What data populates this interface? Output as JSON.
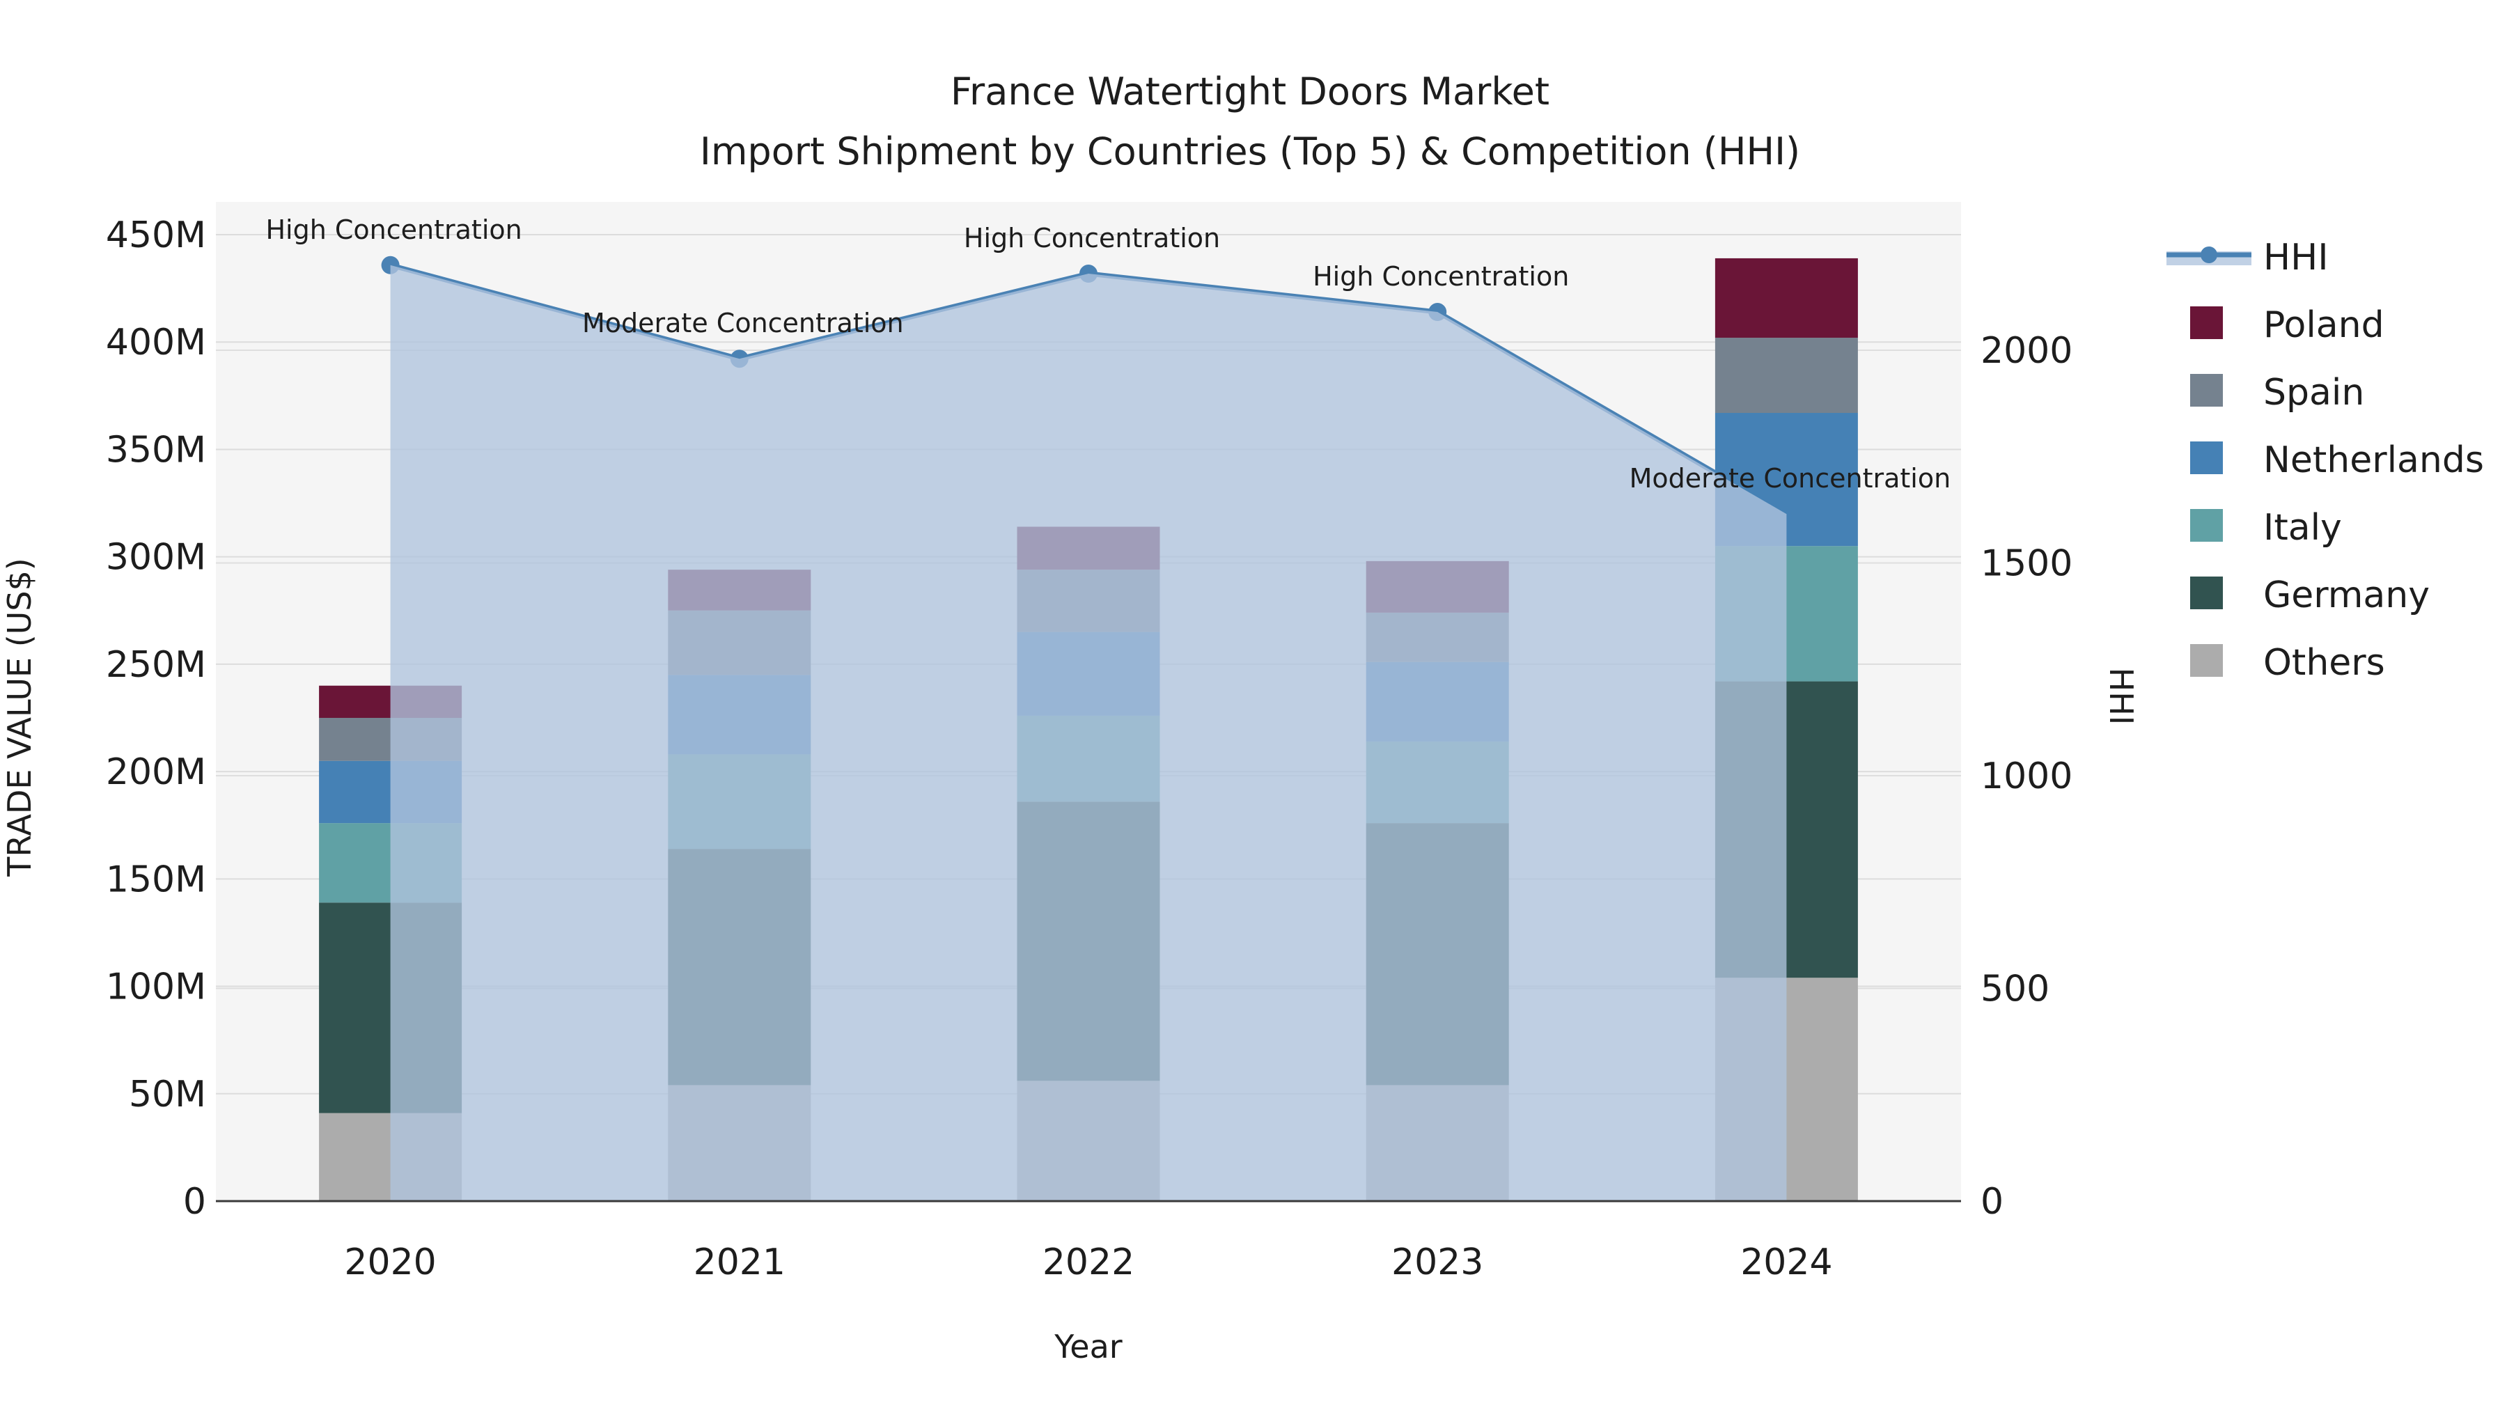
{
  "chart_data": {
    "type": "bar-line-combo",
    "title": "France Watertight Doors Market",
    "subtitle": "Import Shipment by Countries (Top 5) & Competition (HHI)",
    "xlabel": "Year",
    "ylabel_left": "TRADE VALUE (US$)",
    "ylabel_right": "HHI",
    "categories": [
      "2020",
      "2021",
      "2022",
      "2023",
      "2024"
    ],
    "value_unit": "million US$",
    "stack_order_bottom_to_top": [
      "Others",
      "Germany",
      "Italy",
      "Netherlands",
      "Spain",
      "Poland"
    ],
    "series": [
      {
        "name": "Poland",
        "color": "#6a1537",
        "values": [
          15,
          19,
          20,
          24,
          37
        ]
      },
      {
        "name": "Spain",
        "color": "#75828f",
        "values": [
          20,
          30,
          29,
          23,
          35
        ]
      },
      {
        "name": "Netherlands",
        "color": "#4581b5",
        "values": [
          29,
          37,
          39,
          37,
          62
        ]
      },
      {
        "name": "Italy",
        "color": "#60a1a5",
        "values": [
          37,
          44,
          40,
          38,
          63
        ]
      },
      {
        "name": "Germany",
        "color": "#315350",
        "values": [
          98,
          110,
          130,
          122,
          138
        ]
      },
      {
        "name": "Others",
        "color": "#acacac",
        "values": [
          41,
          54,
          56,
          54,
          104
        ]
      }
    ],
    "bar_totals": [
      240,
      294,
      314,
      298,
      439
    ],
    "line": {
      "name": "HHI",
      "color": "#4a82b4",
      "fill_color": "rgba(176,196,222,0.78)",
      "values": [
        2200,
        1980,
        2180,
        2090,
        1615
      ]
    },
    "annotations": [
      {
        "year": "2020",
        "text": "High Concentration"
      },
      {
        "year": "2021",
        "text": "Moderate Concentration"
      },
      {
        "year": "2022",
        "text": "High Concentration"
      },
      {
        "year": "2023",
        "text": "High Concentration"
      },
      {
        "year": "2024",
        "text": "Moderate Concentration"
      }
    ],
    "y_left": {
      "tick_labels": [
        "0",
        "50M",
        "100M",
        "150M",
        "200M",
        "250M",
        "300M",
        "350M",
        "400M",
        "450M"
      ],
      "tick_values": [
        0,
        50,
        100,
        150,
        200,
        250,
        300,
        350,
        400,
        450
      ],
      "max": 450
    },
    "y_right": {
      "tick_labels": [
        "0",
        "500",
        "1000",
        "1500",
        "2000"
      ],
      "tick_values": [
        0,
        500,
        1000,
        1500,
        2000
      ]
    },
    "legend_entries": [
      "HHI",
      "Poland",
      "Spain",
      "Netherlands",
      "Italy",
      "Germany",
      "Others"
    ],
    "legend_position": "right",
    "grid": true,
    "plot_bg_color": "#f5f5f5"
  }
}
